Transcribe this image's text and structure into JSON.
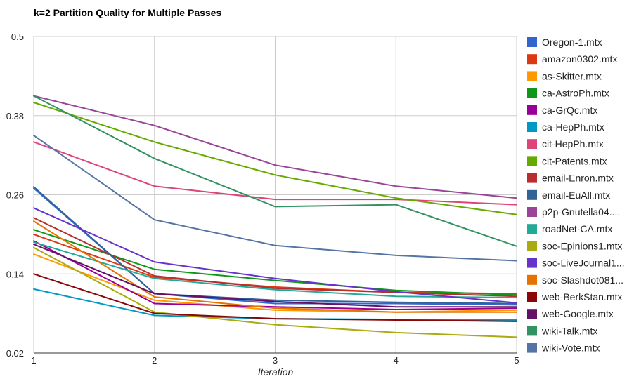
{
  "chart_data": {
    "type": "line",
    "title": "k=2 Partition Quality for Multiple Passes",
    "xlabel": "Iteration",
    "ylabel": "",
    "x": [
      1,
      2,
      3,
      4,
      5
    ],
    "xlim": [
      1,
      5
    ],
    "ylim": [
      0.02,
      0.5
    ],
    "yticks": [
      "0.5",
      "0.38",
      "0.26",
      "0.14",
      "0.02"
    ],
    "xticks": [
      "1",
      "2",
      "3",
      "4",
      "5"
    ],
    "grid": true,
    "legend_position": "right",
    "series": [
      {
        "name": "Oregon-1.mtx",
        "color": "#3366cc",
        "values": [
          0.27,
          0.11,
          0.095,
          0.095,
          0.093
        ]
      },
      {
        "name": "amazon0302.mtx",
        "color": "#dc3912",
        "values": [
          0.2,
          0.135,
          0.12,
          0.112,
          0.11
        ]
      },
      {
        "name": "as-Skitter.mtx",
        "color": "#ff9900",
        "values": [
          0.17,
          0.1,
          0.085,
          0.082,
          0.085
        ]
      },
      {
        "name": "ca-AstroPh.mtx",
        "color": "#109618",
        "values": [
          0.207,
          0.147,
          0.13,
          0.115,
          0.108
        ]
      },
      {
        "name": "ca-GrQc.mtx",
        "color": "#990099",
        "values": [
          0.19,
          0.095,
          0.09,
          0.086,
          0.088
        ]
      },
      {
        "name": "ca-HepPh.mtx",
        "color": "#0099c6",
        "values": [
          0.117,
          0.077,
          0.072,
          0.071,
          0.07
        ]
      },
      {
        "name": "cit-HepPh.mtx",
        "color": "#dd4477",
        "values": [
          0.34,
          0.273,
          0.253,
          0.253,
          0.245
        ]
      },
      {
        "name": "cit-Patents.mtx",
        "color": "#66aa00",
        "values": [
          0.4,
          0.34,
          0.29,
          0.255,
          0.23
        ]
      },
      {
        "name": "email-Enron.mtx",
        "color": "#b82e2e",
        "values": [
          0.225,
          0.137,
          0.118,
          0.112,
          0.106
        ]
      },
      {
        "name": "email-EuAll.mtx",
        "color": "#316395",
        "values": [
          0.272,
          0.11,
          0.1,
          0.097,
          0.095
        ]
      },
      {
        "name": "p2p-Gnutella04.mtx",
        "color": "#994499",
        "values": [
          0.41,
          0.365,
          0.305,
          0.273,
          0.255
        ]
      },
      {
        "name": "roadNet-CA.mtx",
        "color": "#22aa99",
        "values": [
          0.188,
          0.133,
          0.116,
          0.106,
          0.104
        ]
      },
      {
        "name": "soc-Epinions1.mtx",
        "color": "#aaaa11",
        "values": [
          0.18,
          0.082,
          0.063,
          0.051,
          0.044
        ]
      },
      {
        "name": "soc-LiveJournal1.mtx",
        "color": "#6633cc",
        "values": [
          0.24,
          0.158,
          0.133,
          0.113,
          0.096
        ]
      },
      {
        "name": "soc-Slashdot0811.mtx",
        "color": "#e67300",
        "values": [
          0.22,
          0.105,
          0.088,
          0.082,
          0.082
        ]
      },
      {
        "name": "web-BerkStan.mtx",
        "color": "#8b0707",
        "values": [
          0.14,
          0.08,
          0.072,
          0.07,
          0.068
        ]
      },
      {
        "name": "web-Google.mtx",
        "color": "#651067",
        "values": [
          0.185,
          0.11,
          0.098,
          0.09,
          0.09
        ]
      },
      {
        "name": "wiki-Talk.mtx",
        "color": "#329262",
        "values": [
          0.41,
          0.315,
          0.242,
          0.245,
          0.182
        ]
      },
      {
        "name": "wiki-Vote.mtx",
        "color": "#5574a6",
        "values": [
          0.35,
          0.222,
          0.183,
          0.168,
          0.16
        ]
      }
    ]
  },
  "legend_display_labels": [
    "Oregon-1.mtx",
    "amazon0302.mtx",
    "as-Skitter.mtx",
    "ca-AstroPh.mtx",
    "ca-GrQc.mtx",
    "ca-HepPh.mtx",
    "cit-HepPh.mtx",
    "cit-Patents.mtx",
    "email-Enron.mtx",
    "email-EuAll.mtx",
    "p2p-Gnutella04....",
    "roadNet-CA.mtx",
    "soc-Epinions1.mtx",
    "soc-LiveJournal1...",
    "soc-Slashdot081...",
    "web-BerkStan.mtx",
    "web-Google.mtx",
    "wiki-Talk.mtx",
    "wiki-Vote.mtx"
  ]
}
